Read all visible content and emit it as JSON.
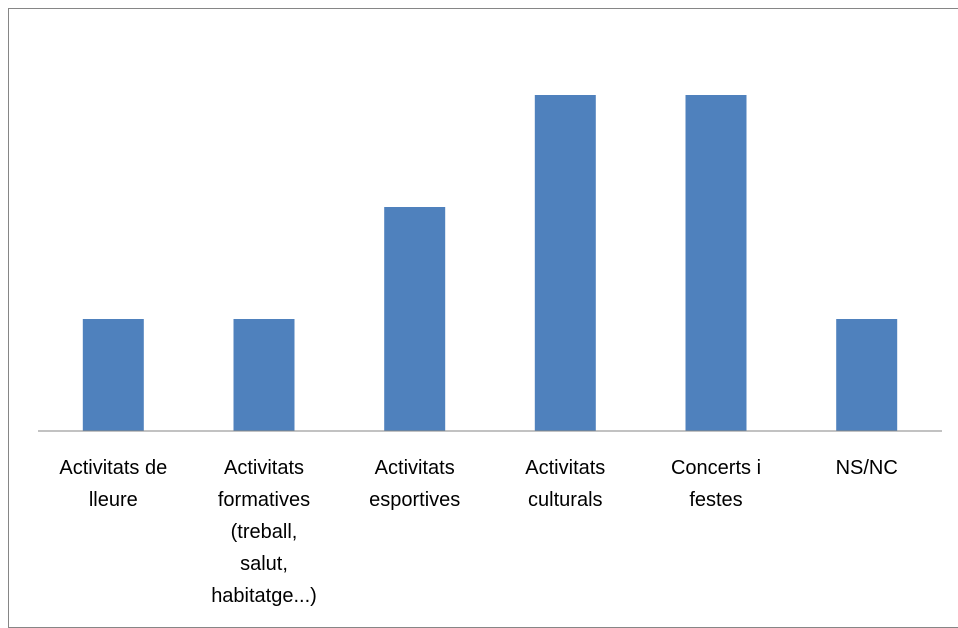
{
  "chart_data": {
    "type": "bar",
    "categories": [
      [
        "Activitats de",
        "lleure"
      ],
      [
        "Activitats",
        "formatives",
        "(treball,",
        "salut,",
        "habitatge...)"
      ],
      [
        "Activitats",
        "esportives"
      ],
      [
        "Activitats",
        "culturals"
      ],
      [
        "Concerts i",
        "festes"
      ],
      [
        "NS/NC"
      ]
    ],
    "values": [
      1,
      1,
      2,
      3,
      3,
      1
    ],
    "ylim": [
      0,
      3
    ],
    "title": "",
    "xlabel": "",
    "ylabel": "",
    "grid": false,
    "legend": "none",
    "colors": {
      "bar": "#4f81bd",
      "axis": "#868686",
      "frame": "#868686"
    }
  }
}
